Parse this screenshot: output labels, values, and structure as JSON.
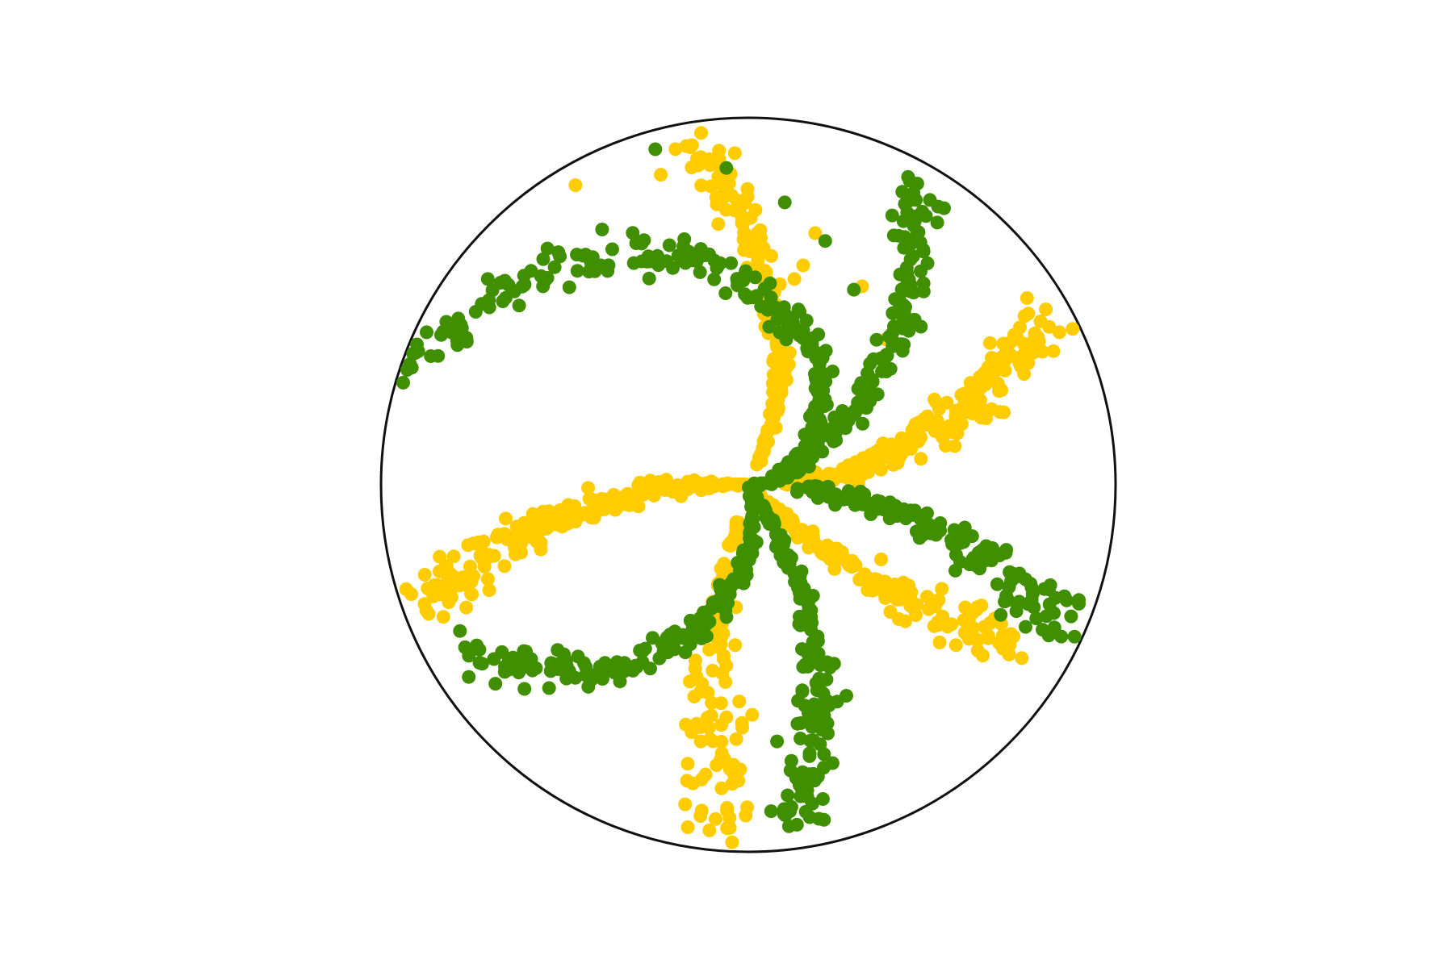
{
  "chart_data": {
    "type": "scatter",
    "coordinate_system": "polar",
    "title": "",
    "axes_visible": false,
    "grid": false,
    "legend": "none",
    "r_range": [
      0,
      1
    ],
    "series": [
      {
        "color": "#ffcc00",
        "arms": [
          {
            "angle_from": 45,
            "angle_to": 120,
            "r_from": 0.55,
            "r_to": 0.95,
            "points": 6
          },
          {
            "angle_from": 65,
            "angle_to": 100,
            "r_from": 0.06,
            "r_to": 0.95,
            "points": 150,
            "spread": 0.045
          },
          {
            "angle_from": 3,
            "angle_to": 30,
            "r_from": 0.12,
            "r_to": 0.93,
            "points": 180,
            "spread": 0.05
          },
          {
            "angle_from": -45,
            "angle_to": -30,
            "r_from": 0.03,
            "r_to": 0.85,
            "points": 140,
            "spread": 0.05
          },
          {
            "angle_from": -105,
            "angle_to": -95,
            "r_from": 0.1,
            "r_to": 0.95,
            "points": 120,
            "spread": 0.06
          },
          {
            "angle_from": 178,
            "angle_to": 200,
            "r_from": 0.02,
            "r_to": 0.93,
            "points": 230,
            "spread": 0.045
          }
        ]
      },
      {
        "color": "#3f8f00",
        "arms": [
          {
            "angle_from": 28,
            "angle_to": 105,
            "r_from": 0.35,
            "r_to": 0.95,
            "points": 8
          },
          {
            "angle_from": 25,
            "angle_to": 62,
            "r_from": 0.12,
            "r_to": 0.94,
            "points": 150,
            "spread": 0.035
          },
          {
            "angle_from": -3,
            "angle_to": -24,
            "r_from": 0.12,
            "r_to": 0.95,
            "points": 150,
            "spread": 0.05
          },
          {
            "angle_from": -55,
            "angle_to": -82,
            "r_from": 0.03,
            "r_to": 0.95,
            "points": 170,
            "spread": 0.04
          },
          {
            "angle_from": -80,
            "angle_to": -150,
            "r_from": 0.05,
            "r_to": 0.9,
            "points": 170,
            "spread": 0.04
          },
          {
            "angle_from": 3,
            "angle_to": 163,
            "r_from": 0.03,
            "r_to": 0.98,
            "points": 240,
            "spread": 0.045
          }
        ]
      }
    ],
    "boundary_circle": true
  }
}
